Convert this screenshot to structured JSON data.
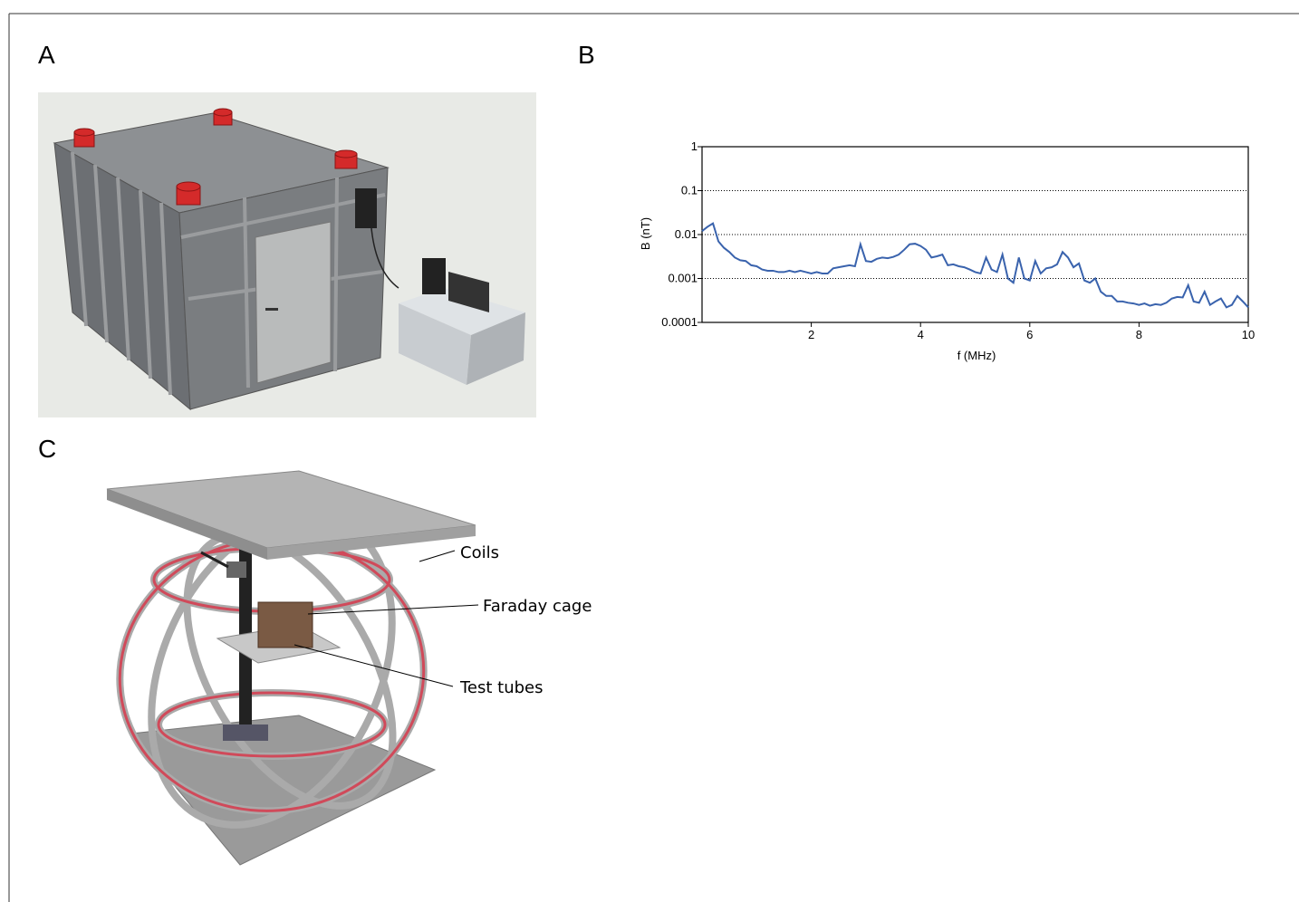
{
  "panels": [
    {
      "label": "A"
    },
    {
      "label": "B"
    },
    {
      "label": "C",
      "annotations": [
        "Coils",
        "Faraday cage",
        "Test tubes"
      ]
    }
  ],
  "chart_data": {
    "type": "line",
    "xlabel": "f (MHz)",
    "ylabel": "B (nT)",
    "color": "#3a63ad",
    "log_y": true,
    "grid": true,
    "xlim": [
      0,
      10
    ],
    "xticks": [
      2,
      4,
      6,
      8,
      10
    ],
    "ylim": [
      0.0001,
      1
    ],
    "yticks": [
      0.0001,
      0.001,
      0.01,
      0.1,
      1
    ],
    "x": [
      0,
      0.1,
      0.2,
      0.3,
      0.4,
      0.5,
      0.6,
      0.7,
      0.8,
      0.9,
      1,
      1.1,
      1.2,
      1.3,
      1.4,
      1.5,
      1.6,
      1.7,
      1.8,
      1.9,
      2,
      2.1,
      2.2,
      2.3,
      2.4,
      2.5,
      2.6,
      2.7,
      2.8,
      2.9,
      3,
      3.1,
      3.2,
      3.3,
      3.4,
      3.5,
      3.6,
      3.7,
      3.8,
      3.9,
      4,
      4.1,
      4.2,
      4.3,
      4.4,
      4.5,
      4.6,
      4.7,
      4.8,
      4.9,
      5,
      5.1,
      5.2,
      5.3,
      5.4,
      5.5,
      5.6,
      5.7,
      5.8,
      5.9,
      6,
      6.1,
      6.2,
      6.3,
      6.4,
      6.5,
      6.6,
      6.7,
      6.8,
      6.9,
      7,
      7.1,
      7.2,
      7.3,
      7.4,
      7.5,
      7.6,
      7.7,
      7.8,
      7.9,
      8,
      8.1,
      8.2,
      8.3,
      8.4,
      8.5,
      8.6,
      8.7,
      8.8,
      8.9,
      9,
      9.1,
      9.2,
      9.3,
      9.4,
      9.5,
      9.6,
      9.7,
      9.8,
      9.9,
      10
    ],
    "values": [
      0.012,
      0.015,
      0.018,
      0.007,
      0.005,
      0.004,
      0.003,
      0.0026,
      0.0025,
      0.002,
      0.0019,
      0.0016,
      0.0015,
      0.0015,
      0.0014,
      0.0014,
      0.0015,
      0.0014,
      0.0015,
      0.0014,
      0.0013,
      0.0014,
      0.0013,
      0.0013,
      0.0017,
      0.0018,
      0.0019,
      0.002,
      0.0019,
      0.006,
      0.0025,
      0.0024,
      0.0028,
      0.003,
      0.0029,
      0.0031,
      0.0035,
      0.0045,
      0.006,
      0.0062,
      0.0055,
      0.0045,
      0.003,
      0.0032,
      0.0035,
      0.002,
      0.0021,
      0.0019,
      0.0018,
      0.0016,
      0.0014,
      0.0013,
      0.003,
      0.0016,
      0.0014,
      0.0035,
      0.001,
      0.0008,
      0.003,
      0.001,
      0.0009,
      0.0025,
      0.0013,
      0.0017,
      0.0018,
      0.0021,
      0.004,
      0.003,
      0.0018,
      0.0022,
      0.0009,
      0.0008,
      0.001,
      0.0005,
      0.0004,
      0.0004,
      0.0003,
      0.0003,
      0.00028,
      0.00027,
      0.00025,
      0.00027,
      0.00024,
      0.00026,
      0.00025,
      0.00028,
      0.00035,
      0.00038,
      0.00037,
      0.0007,
      0.0003,
      0.00028,
      0.0005,
      0.00025,
      0.0003,
      0.00035,
      0.00022,
      0.00025,
      0.0004,
      0.0003,
      0.00022
    ]
  }
}
